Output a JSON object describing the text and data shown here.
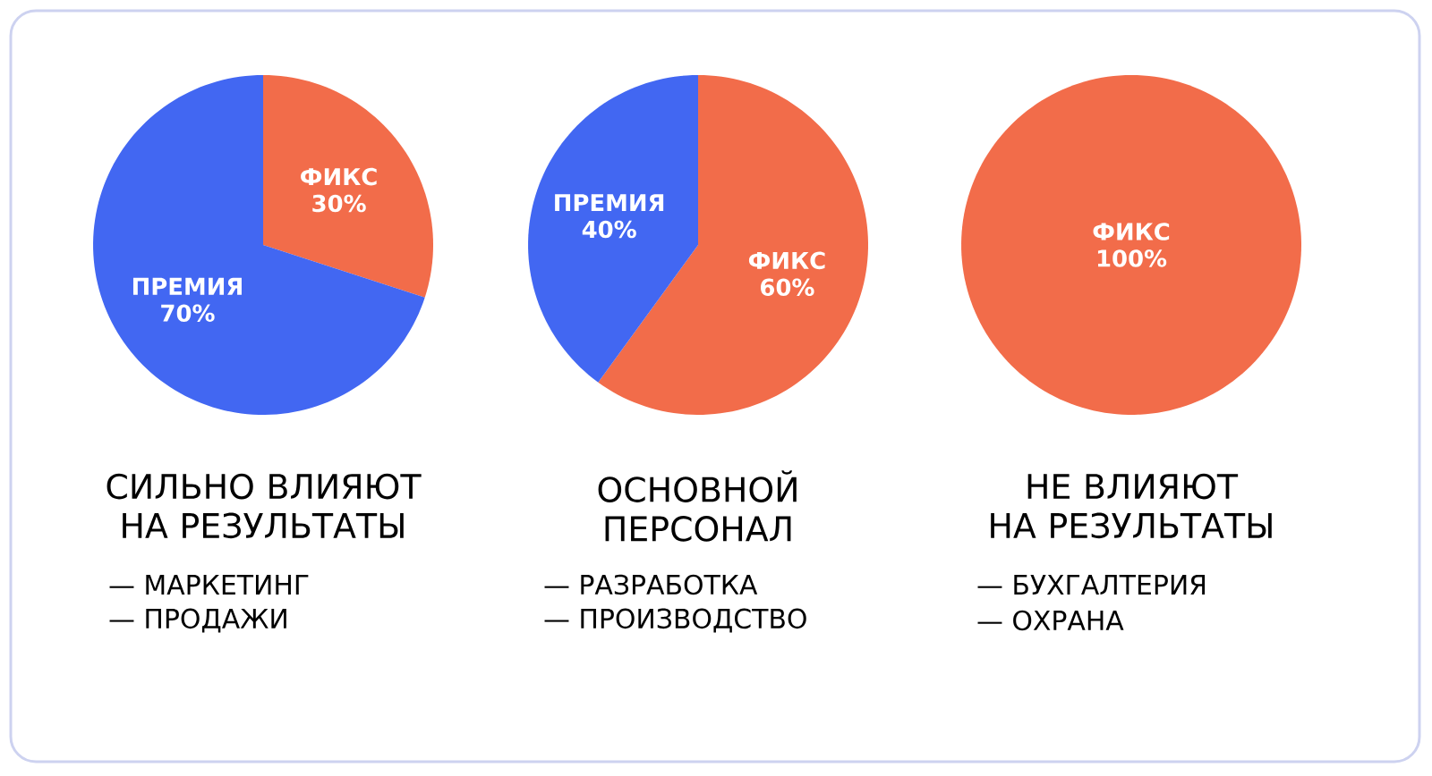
{
  "chart_data": [
    {
      "type": "pie",
      "title": "СИЛЬНО ВЛИЯЮТ\nНА РЕЗУЛЬТАТЫ",
      "categories": [
        "ФИКС",
        "ПРЕМИЯ"
      ],
      "values": [
        30,
        70
      ],
      "value_labels": [
        "30%",
        "70%"
      ],
      "colors": [
        "#f26c4a",
        "#4267f2"
      ],
      "annotations": [
        "— МАРКЕТИНГ",
        "— ПРОДАЖИ"
      ]
    },
    {
      "type": "pie",
      "title": "ОСНОВНОЙ\nПЕРСОНАЛ",
      "categories": [
        "ФИКС",
        "ПРЕМИЯ"
      ],
      "values": [
        60,
        40
      ],
      "value_labels": [
        "60%",
        "40%"
      ],
      "colors": [
        "#f26c4a",
        "#4267f2"
      ],
      "annotations": [
        "— РАЗРАБОТКА",
        "— ПРОИЗВОДСТВО"
      ]
    },
    {
      "type": "pie",
      "title": "НЕ ВЛИЯЮТ\nНА РЕЗУЛЬТАТЫ",
      "categories": [
        "ФИКС"
      ],
      "values": [
        100
      ],
      "value_labels": [
        "100%"
      ],
      "colors": [
        "#f26c4a"
      ],
      "annotations": [
        "— БУХГАЛТЕРИЯ",
        "— ОХРАНА"
      ]
    }
  ]
}
